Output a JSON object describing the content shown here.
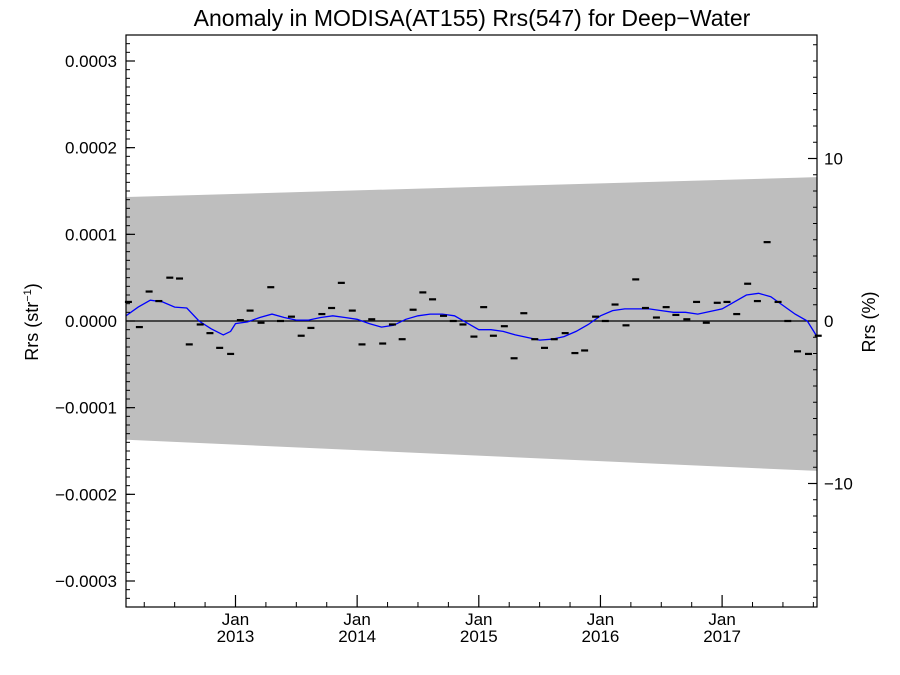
{
  "chart_data": {
    "type": "scatter",
    "title": "Anomaly in MODISA(AT155) Rrs(547) for Deep−Water",
    "ylabel_left_base": "Rrs (str",
    "ylabel_left_sup": "−1",
    "ylabel_left_close": ")",
    "ylabel_right": "Rrs (%)",
    "xlim": [
      2012.1,
      2017.78
    ],
    "ylim_left": [
      -0.00033,
      0.00033
    ],
    "ylim_right": [
      -17.6,
      17.6
    ],
    "left_ticks": [
      {
        "value": 0.0003,
        "label": "0.0003"
      },
      {
        "value": 0.0002,
        "label": "0.0002"
      },
      {
        "value": 0.0001,
        "label": "0.0001"
      },
      {
        "value": 0.0,
        "label": "0.0000"
      },
      {
        "value": -0.0001,
        "label": "−0.0001"
      },
      {
        "value": -0.0002,
        "label": "−0.0002"
      },
      {
        "value": -0.0003,
        "label": "−0.0003"
      }
    ],
    "right_ticks": [
      {
        "value": 10,
        "label": "10"
      },
      {
        "value": 0,
        "label": "0"
      },
      {
        "value": -10,
        "label": "−10"
      }
    ],
    "x_ticks": [
      {
        "value": 2013.0,
        "month": "Jan",
        "year": "2013"
      },
      {
        "value": 2014.0,
        "month": "Jan",
        "year": "2014"
      },
      {
        "value": 2015.0,
        "month": "Jan",
        "year": "2015"
      },
      {
        "value": 2016.0,
        "month": "Jan",
        "year": "2016"
      },
      {
        "value": 2017.0,
        "month": "Jan",
        "year": "2017"
      }
    ],
    "band": {
      "x": [
        2012.1,
        2017.78
      ],
      "upper": [
        0.000143,
        0.000166
      ],
      "lower": [
        -0.000137,
        -0.000173
      ],
      "color": "#bebebe"
    },
    "zero_line": 0.0,
    "points": {
      "name": "monthly anomaly",
      "color": "#000000",
      "x": [
        2012.12,
        2012.21,
        2012.29,
        2012.37,
        2012.46,
        2012.54,
        2012.62,
        2012.71,
        2012.79,
        2012.87,
        2012.96,
        2013.04,
        2013.12,
        2013.21,
        2013.29,
        2013.37,
        2013.46,
        2013.54,
        2013.62,
        2013.71,
        2013.79,
        2013.87,
        2013.96,
        2014.04,
        2014.12,
        2014.21,
        2014.29,
        2014.37,
        2014.46,
        2014.54,
        2014.62,
        2014.71,
        2014.79,
        2014.87,
        2014.96,
        2015.04,
        2015.12,
        2015.21,
        2015.29,
        2015.37,
        2015.46,
        2015.54,
        2015.62,
        2015.71,
        2015.79,
        2015.87,
        2015.96,
        2016.04,
        2016.12,
        2016.21,
        2016.29,
        2016.37,
        2016.46,
        2016.54,
        2016.62,
        2016.71,
        2016.79,
        2016.87,
        2016.96,
        2017.04,
        2017.12,
        2017.21,
        2017.29,
        2017.37,
        2017.46,
        2017.54,
        2017.62,
        2017.71,
        2017.79
      ],
      "y": [
        2.2e-05,
        -7e-06,
        3.4e-05,
        2.3e-05,
        5e-05,
        4.9e-05,
        -2.7e-05,
        -4e-06,
        -1.4e-05,
        -3.1e-05,
        -3.8e-05,
        1e-06,
        1.2e-05,
        -2e-06,
        3.9e-05,
        0.0,
        5e-06,
        -1.7e-05,
        -8e-06,
        8e-06,
        1.5e-05,
        4.4e-05,
        1.2e-05,
        -2.7e-05,
        2e-06,
        -2.6e-05,
        -4e-06,
        -2.1e-05,
        1.3e-05,
        3.3e-05,
        2.5e-05,
        6e-06,
        0.0,
        -4e-06,
        -1.8e-05,
        1.6e-05,
        -1.7e-05,
        -6e-06,
        -4.3e-05,
        9e-06,
        -2.1e-05,
        -3.1e-05,
        -2.1e-05,
        -1.4e-05,
        -3.7e-05,
        -3.4e-05,
        5e-06,
        0.0,
        1.9e-05,
        -5e-06,
        4.8e-05,
        1.5e-05,
        4e-06,
        1.6e-05,
        7e-06,
        2e-06,
        2.2e-05,
        -2e-06,
        2.1e-05,
        2.2e-05,
        8e-06,
        4.3e-05,
        2.3e-05,
        9.1e-05,
        2.2e-05,
        0.0,
        -3.5e-05,
        -3.8e-05,
        -1.7e-05
      ]
    },
    "trend": {
      "name": "running mean",
      "color": "#0000ff",
      "x": [
        2012.1,
        2012.2,
        2012.3,
        2012.4,
        2012.5,
        2012.6,
        2012.7,
        2012.8,
        2012.9,
        2012.96,
        2013.0,
        2013.1,
        2013.2,
        2013.3,
        2013.4,
        2013.5,
        2013.6,
        2013.7,
        2013.8,
        2013.9,
        2014.0,
        2014.1,
        2014.2,
        2014.3,
        2014.4,
        2014.5,
        2014.6,
        2014.7,
        2014.8,
        2014.9,
        2015.0,
        2015.1,
        2015.2,
        2015.3,
        2015.4,
        2015.5,
        2015.6,
        2015.7,
        2015.8,
        2015.9,
        2016.0,
        2016.1,
        2016.2,
        2016.3,
        2016.4,
        2016.5,
        2016.6,
        2016.7,
        2016.8,
        2016.9,
        2017.0,
        2017.1,
        2017.2,
        2017.3,
        2017.4,
        2017.5,
        2017.6,
        2017.7,
        2017.78
      ],
      "y": [
        6e-06,
        1.6e-05,
        2.4e-05,
        2.2e-05,
        1.6e-05,
        1.5e-05,
        0.0,
        -9e-06,
        -1.6e-05,
        -1.2e-05,
        -3e-06,
        -1e-06,
        4e-06,
        8e-06,
        4e-06,
        1e-06,
        1e-06,
        4e-06,
        6e-06,
        4e-06,
        2e-06,
        -3e-06,
        -7e-06,
        -5e-06,
        2e-06,
        6e-06,
        8e-06,
        8e-06,
        6e-06,
        -2e-06,
        -1e-05,
        -1e-05,
        -1.2e-05,
        -1.6e-05,
        -1.9e-05,
        -2.2e-05,
        -2.1e-05,
        -1.8e-05,
        -1.2e-05,
        -4e-06,
        6e-06,
        1.2e-05,
        1.4e-05,
        1.4e-05,
        1.4e-05,
        1.2e-05,
        1e-05,
        1e-05,
        8e-06,
        1.1e-05,
        1.4e-05,
        2.2e-05,
        3e-05,
        3.2e-05,
        2.8e-05,
        1.8e-05,
        8e-06,
        0.0,
        -1.8e-05
      ]
    }
  }
}
